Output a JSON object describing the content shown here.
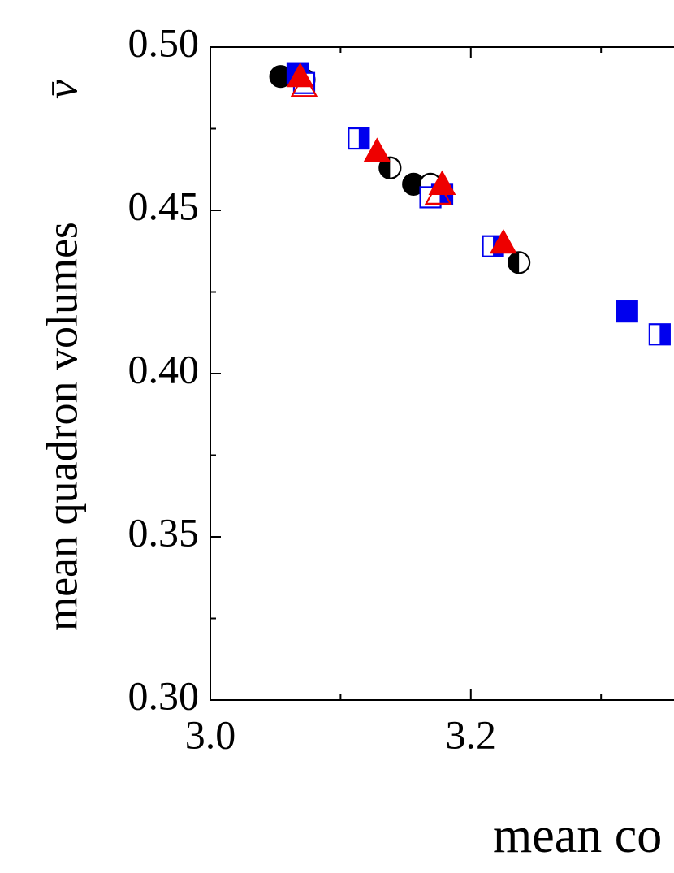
{
  "chart_data": {
    "type": "scatter",
    "xlabel": "mean co",
    "ylabel": "mean quadron volumes",
    "ylabel_symbol": "v̄",
    "xlim": [
      3.0,
      3.356
    ],
    "ylim": [
      0.3,
      0.5
    ],
    "xticks": [
      {
        "value": 3.0,
        "label": "3.0"
      },
      {
        "value": 3.2,
        "label": "3.2"
      }
    ],
    "xminor_ticks": [
      3.1,
      3.3
    ],
    "yticks": [
      {
        "value": 0.3,
        "label": "0.30"
      },
      {
        "value": 0.35,
        "label": "0.35"
      },
      {
        "value": 0.4,
        "label": "0.40"
      },
      {
        "value": 0.45,
        "label": "0.45"
      },
      {
        "value": 0.5,
        "label": "0.50"
      }
    ],
    "yminor_ticks": [
      0.325,
      0.375,
      0.425,
      0.475
    ],
    "series": [
      {
        "marker": "circle",
        "fill": "full",
        "color": "#000000",
        "x": [
          3.054,
          3.156
        ],
        "values": [
          0.491,
          0.458
        ]
      },
      {
        "marker": "circle",
        "fill": "half",
        "color": "#000000",
        "x": [
          3.072,
          3.138,
          3.237
        ],
        "values": [
          0.49,
          0.463,
          0.434
        ]
      },
      {
        "marker": "circle",
        "fill": "open",
        "color": "#000000",
        "x": [
          3.169
        ],
        "values": [
          0.458
        ]
      },
      {
        "marker": "square",
        "fill": "full",
        "color": "#0000ee",
        "x": [
          3.067,
          3.178,
          3.32
        ],
        "values": [
          0.492,
          0.455,
          0.419
        ]
      },
      {
        "marker": "square",
        "fill": "half",
        "color": "#0000ee",
        "x": [
          3.114,
          3.217,
          3.345
        ],
        "values": [
          0.472,
          0.439,
          0.412
        ]
      },
      {
        "marker": "square",
        "fill": "open",
        "color": "#0000ee",
        "x": [
          3.072,
          3.169
        ],
        "values": [
          0.489,
          0.454
        ]
      },
      {
        "marker": "triangle",
        "fill": "full",
        "color": "#ee0000",
        "x": [
          3.069,
          3.128,
          3.178,
          3.225
        ],
        "values": [
          0.491,
          0.468,
          0.458,
          0.44
        ]
      },
      {
        "marker": "triangle",
        "fill": "open",
        "color": "#ee0000",
        "x": [
          3.072,
          3.175
        ],
        "values": [
          0.488,
          0.455
        ]
      }
    ]
  }
}
